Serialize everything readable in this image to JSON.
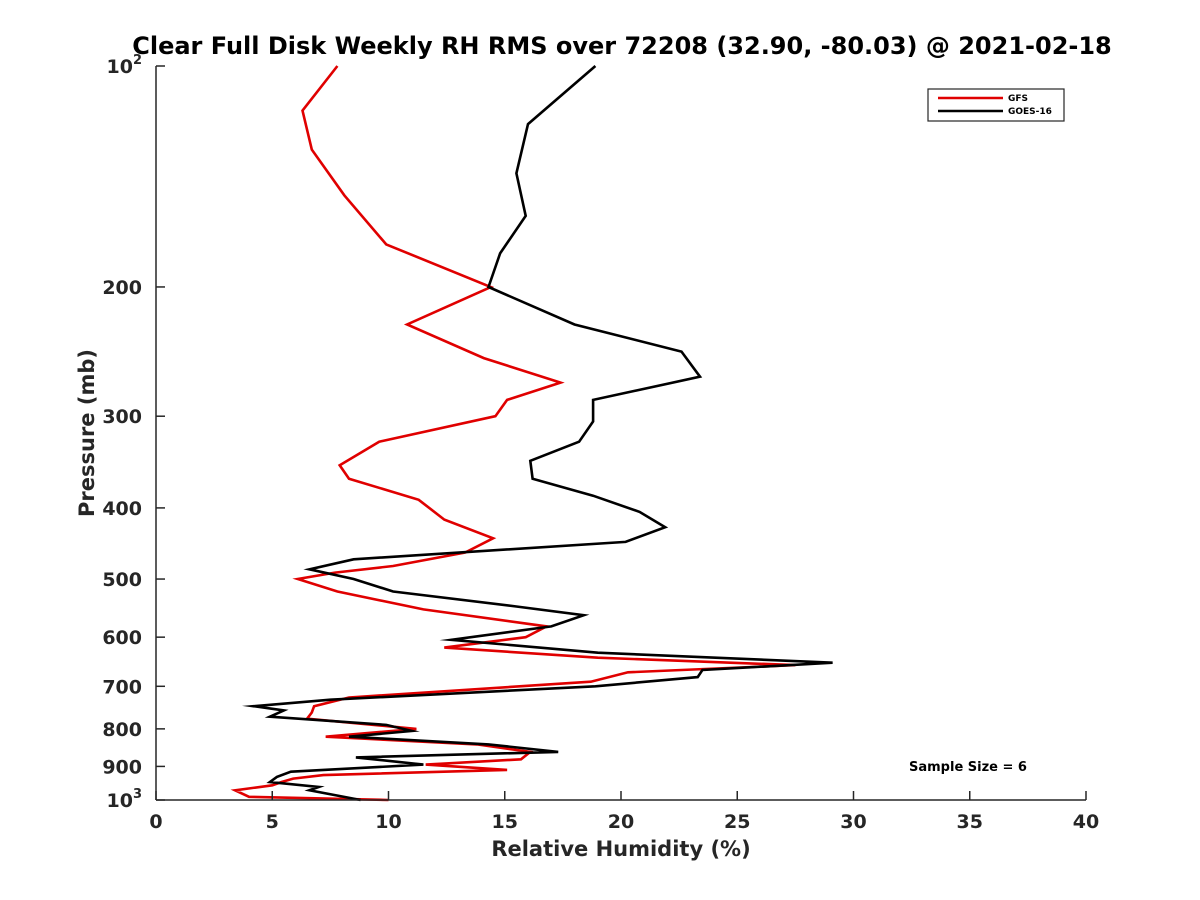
{
  "chart_data": {
    "type": "line",
    "title": "Clear Full Disk Weekly RH RMS over 72208 (32.90, -80.03) @ 2021-02-18",
    "xlabel": "Relative Humidity (%)",
    "ylabel": "Pressure (mb)",
    "xlim": [
      0,
      40
    ],
    "ylim": [
      100,
      1000
    ],
    "y_scale": "log",
    "y_reversed": true,
    "grid": false,
    "legend_position": "top-right",
    "x_ticks": [
      0,
      5,
      10,
      15,
      20,
      25,
      30,
      35,
      40
    ],
    "y_ticks": [
      {
        "value": 100,
        "base": "10",
        "exp": "2"
      },
      {
        "value": 200,
        "label": "200"
      },
      {
        "value": 300,
        "label": "300"
      },
      {
        "value": 400,
        "label": "400"
      },
      {
        "value": 500,
        "label": "500"
      },
      {
        "value": 600,
        "label": "600"
      },
      {
        "value": 700,
        "label": "700"
      },
      {
        "value": 800,
        "label": "800"
      },
      {
        "value": 900,
        "label": "900"
      },
      {
        "value": 1000,
        "base": "10",
        "exp": "3"
      }
    ],
    "annotation": "Sample Size = 6",
    "series": [
      {
        "name": "GFS",
        "color": "#e00000",
        "points": [
          [
            7.8,
            100
          ],
          [
            6.3,
            115
          ],
          [
            6.7,
            130
          ],
          [
            8.1,
            150
          ],
          [
            9.9,
            175
          ],
          [
            14.4,
            200
          ],
          [
            10.8,
            225
          ],
          [
            14.1,
            250
          ],
          [
            17.4,
            270
          ],
          [
            15.1,
            285
          ],
          [
            14.6,
            300
          ],
          [
            9.6,
            325
          ],
          [
            7.9,
            350
          ],
          [
            8.3,
            365
          ],
          [
            11.3,
            390
          ],
          [
            12.4,
            415
          ],
          [
            14.5,
            440
          ],
          [
            13.3,
            460
          ],
          [
            10.2,
            480
          ],
          [
            7.7,
            490
          ],
          [
            6.1,
            500
          ],
          [
            7.8,
            520
          ],
          [
            11.5,
            550
          ],
          [
            16.8,
            580
          ],
          [
            15.9,
            600
          ],
          [
            12.4,
            620
          ],
          [
            19.0,
            640
          ],
          [
            27.5,
            655
          ],
          [
            20.3,
            670
          ],
          [
            18.7,
            690
          ],
          [
            8.3,
            725
          ],
          [
            6.8,
            745
          ],
          [
            6.7,
            760
          ],
          [
            6.5,
            775
          ],
          [
            11.2,
            800
          ],
          [
            7.3,
            820
          ],
          [
            13.8,
            840
          ],
          [
            16.1,
            860
          ],
          [
            15.7,
            880
          ],
          [
            11.6,
            895
          ],
          [
            15.1,
            910
          ],
          [
            7.2,
            925
          ],
          [
            5.9,
            935
          ],
          [
            5.4,
            945
          ],
          [
            5.0,
            955
          ],
          [
            3.4,
            970
          ],
          [
            4.0,
            990
          ],
          [
            10.0,
            1000
          ]
        ]
      },
      {
        "name": "GOES-16",
        "color": "#000000",
        "points": [
          [
            18.9,
            100
          ],
          [
            16.0,
            120
          ],
          [
            15.5,
            140
          ],
          [
            15.9,
            160
          ],
          [
            14.8,
            180
          ],
          [
            14.3,
            200
          ],
          [
            18.0,
            225
          ],
          [
            22.6,
            245
          ],
          [
            23.4,
            265
          ],
          [
            18.8,
            285
          ],
          [
            18.8,
            305
          ],
          [
            18.2,
            325
          ],
          [
            16.1,
            345
          ],
          [
            16.2,
            365
          ],
          [
            18.8,
            385
          ],
          [
            20.8,
            405
          ],
          [
            21.9,
            425
          ],
          [
            20.2,
            445
          ],
          [
            8.5,
            470
          ],
          [
            6.6,
            485
          ],
          [
            8.5,
            500
          ],
          [
            10.2,
            520
          ],
          [
            15.5,
            545
          ],
          [
            18.4,
            560
          ],
          [
            17.0,
            580
          ],
          [
            12.7,
            605
          ],
          [
            19.0,
            630
          ],
          [
            29.1,
            650
          ],
          [
            23.5,
            665
          ],
          [
            23.3,
            680
          ],
          [
            18.9,
            700
          ],
          [
            7.5,
            730
          ],
          [
            4.2,
            745
          ],
          [
            5.5,
            755
          ],
          [
            4.9,
            770
          ],
          [
            9.9,
            790
          ],
          [
            11.0,
            805
          ],
          [
            8.3,
            820
          ],
          [
            14.3,
            840
          ],
          [
            17.3,
            860
          ],
          [
            8.6,
            875
          ],
          [
            11.5,
            895
          ],
          [
            5.8,
            915
          ],
          [
            5.2,
            930
          ],
          [
            4.9,
            945
          ],
          [
            7.0,
            960
          ],
          [
            6.6,
            970
          ],
          [
            8.8,
            1000
          ]
        ]
      }
    ]
  }
}
